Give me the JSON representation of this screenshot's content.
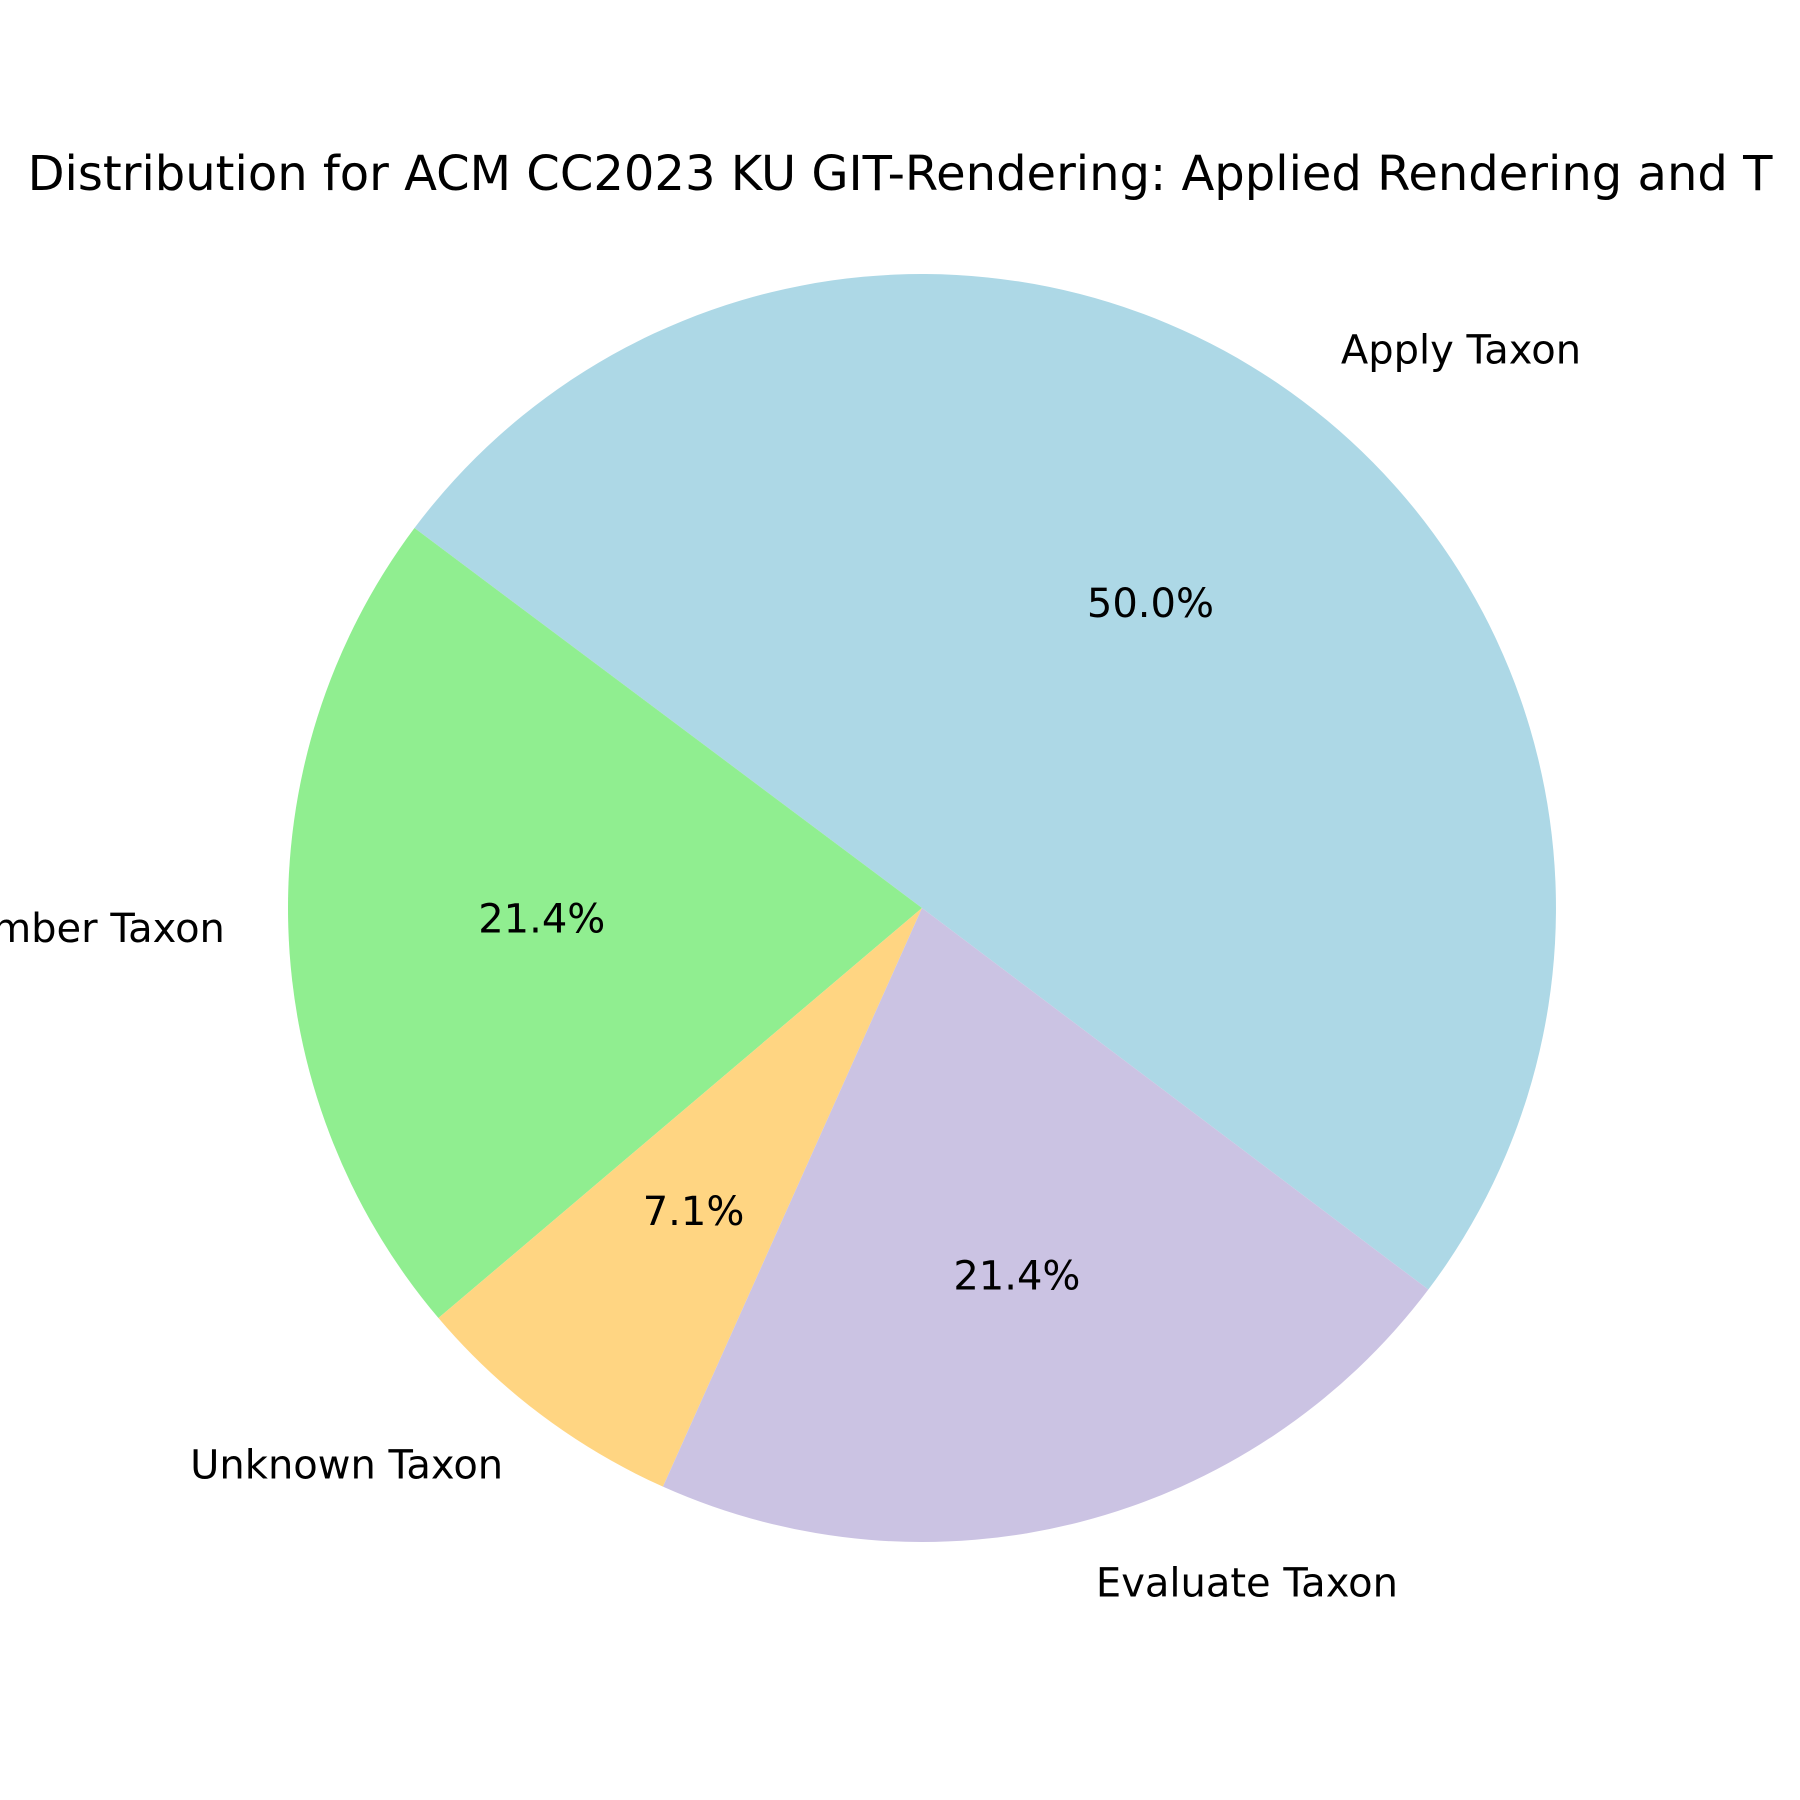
{
  "chart_data": {
    "type": "pie",
    "title": "Distribution for ACM CC2023 KU GIT-Rendering: Applied Rendering and T",
    "slices": [
      {
        "label": "Apply Taxon",
        "value": 50.0,
        "pct_label": "50.0%",
        "color": "#add8e6"
      },
      {
        "label": "Remember Taxon",
        "value": 21.4,
        "pct_label": "21.4%",
        "color": "#90ee90"
      },
      {
        "label": "Unknown Taxon",
        "value": 7.1,
        "pct_label": "7.1%",
        "color": "#ffd582"
      },
      {
        "label": "Evaluate Taxon",
        "value": 21.4,
        "pct_label": "21.4%",
        "color": "#cbc3e3"
      }
    ],
    "start_angle_deg": -37,
    "direction": "counterclockwise",
    "legend": "none"
  }
}
